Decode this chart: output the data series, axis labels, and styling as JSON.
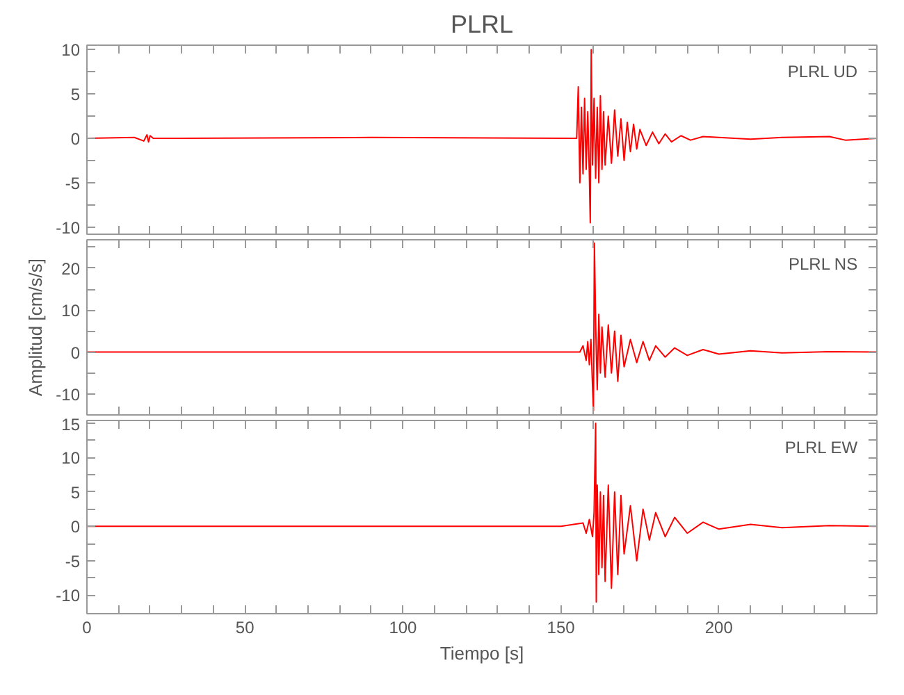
{
  "chart_data": [
    {
      "type": "line",
      "title": "PLRL",
      "annotations": [
        "PLRL   UD"
      ],
      "grid": false,
      "tick_labels": "y",
      "x": [
        0,
        15,
        18,
        19,
        19.5,
        20,
        21,
        25,
        90,
        155,
        155.5,
        156,
        156.5,
        157,
        157.5,
        158,
        158.5,
        159,
        159.3,
        159.6,
        160,
        160.5,
        161,
        161.5,
        162,
        162.5,
        163,
        163.5,
        164,
        165,
        166,
        167,
        168,
        169,
        170,
        171,
        172,
        173,
        174,
        175,
        177,
        179,
        181,
        183,
        185,
        188,
        191,
        195,
        200,
        210,
        220,
        235,
        240,
        250
      ],
      "series": [
        {
          "color": "#ff0000",
          "values": [
            0,
            0.1,
            -0.3,
            0.4,
            -0.4,
            0.3,
            0,
            0,
            0.1,
            0,
            5.8,
            -5,
            3.5,
            -4,
            4.5,
            -3.5,
            3,
            -4,
            -9.5,
            10,
            -3,
            4.5,
            -4.5,
            3.5,
            -5,
            4.8,
            -3.5,
            3,
            -3,
            2.5,
            -2.8,
            3.2,
            -2,
            2.2,
            -2.5,
            1.8,
            -1.5,
            1.6,
            -1.2,
            1,
            -0.8,
            0.7,
            -0.6,
            0.5,
            -0.4,
            0.3,
            -0.2,
            0.2,
            0.1,
            -0.1,
            0.1,
            0.2,
            -0.2,
            0
          ]
        }
      ],
      "xlim": [
        0,
        250
      ],
      "ylim": [
        -10.8,
        10.5
      ],
      "xticks": [
        0,
        {
          "value": 10,
          "label": null
        },
        {
          "value": 20,
          "label": null
        },
        {
          "value": 30,
          "label": null
        },
        {
          "value": 40,
          "label": null
        },
        50,
        {
          "value": 60,
          "label": null
        },
        {
          "value": 70,
          "label": null
        },
        {
          "value": 80,
          "label": null
        },
        {
          "value": 90,
          "label": null
        },
        100,
        {
          "value": 110,
          "label": null
        },
        {
          "value": 120,
          "label": null
        },
        {
          "value": 130,
          "label": null
        },
        {
          "value": 140,
          "label": null
        },
        150,
        {
          "value": 160,
          "label": null
        },
        {
          "value": 170,
          "label": null
        },
        {
          "value": 180,
          "label": null
        },
        {
          "value": 190,
          "label": null
        },
        200,
        {
          "value": 210,
          "label": null
        },
        {
          "value": 220,
          "label": null
        },
        {
          "value": 230,
          "label": null
        },
        {
          "value": 240,
          "label": null
        }
      ],
      "yticks": [
        -10,
        {
          "value": -7.5,
          "label": null
        },
        -5,
        {
          "value": -2.5,
          "label": null
        },
        0,
        {
          "value": 2.5,
          "label": null
        },
        5,
        {
          "value": 7.5,
          "label": null
        },
        10
      ]
    },
    {
      "type": "line",
      "ylabel": "Amplitud [cm/s/s]",
      "annotations": [
        "PLRL   NS"
      ],
      "grid": false,
      "tick_labels": "y",
      "x": [
        0,
        50,
        100,
        150,
        156,
        157,
        158,
        158.5,
        159,
        159.5,
        160,
        160.3,
        160.6,
        161,
        161.5,
        162,
        162.5,
        163,
        164,
        165,
        166,
        167,
        168,
        169,
        170,
        172,
        174,
        176,
        178,
        180,
        183,
        186,
        190,
        195,
        200,
        210,
        220,
        235,
        250
      ],
      "series": [
        {
          "color": "#ff0000",
          "values": [
            0,
            0,
            0,
            0,
            0,
            1.5,
            -2,
            2.5,
            -3,
            3,
            -8,
            -14,
            26,
            7,
            -9,
            9,
            -5,
            6,
            -6,
            6.5,
            -5,
            5,
            -7,
            4,
            -3.5,
            3,
            -2.5,
            2.5,
            -2,
            1.5,
            -1.2,
            1,
            -0.8,
            0.6,
            -0.5,
            0.3,
            -0.2,
            0.1,
            0
          ]
        }
      ],
      "xlim": [
        0,
        250
      ],
      "ylim": [
        -15,
        26.8
      ],
      "xticks": [
        0,
        {
          "value": 10,
          "label": null
        },
        {
          "value": 20,
          "label": null
        },
        {
          "value": 30,
          "label": null
        },
        {
          "value": 40,
          "label": null
        },
        50,
        {
          "value": 60,
          "label": null
        },
        {
          "value": 70,
          "label": null
        },
        {
          "value": 80,
          "label": null
        },
        {
          "value": 90,
          "label": null
        },
        100,
        {
          "value": 110,
          "label": null
        },
        {
          "value": 120,
          "label": null
        },
        {
          "value": 130,
          "label": null
        },
        {
          "value": 140,
          "label": null
        },
        150,
        {
          "value": 160,
          "label": null
        },
        {
          "value": 170,
          "label": null
        },
        {
          "value": 180,
          "label": null
        },
        {
          "value": 190,
          "label": null
        },
        200,
        {
          "value": 210,
          "label": null
        },
        {
          "value": 220,
          "label": null
        },
        {
          "value": 230,
          "label": null
        },
        {
          "value": 240,
          "label": null
        }
      ],
      "yticks": [
        -10,
        {
          "value": -5,
          "label": null
        },
        0,
        {
          "value": 5,
          "label": null
        },
        10,
        {
          "value": 15,
          "label": null
        },
        20,
        {
          "value": 25,
          "label": null
        }
      ]
    },
    {
      "type": "line",
      "xlabel": "Tiempo [s]",
      "annotations": [
        "PLRL   EW"
      ],
      "grid": false,
      "x": [
        0,
        50,
        100,
        150,
        157,
        158,
        159,
        160,
        160.5,
        161,
        161.2,
        161.5,
        162,
        162.5,
        163,
        163.5,
        164,
        165,
        166,
        167,
        168,
        169,
        170,
        172,
        174,
        176,
        178,
        180,
        183,
        186,
        190,
        195,
        200,
        210,
        220,
        235,
        250
      ],
      "series": [
        {
          "color": "#ff0000",
          "values": [
            0,
            0,
            0,
            0,
            0.5,
            -1,
            1,
            -1.5,
            2,
            15,
            -11,
            6,
            -7,
            5,
            -6,
            4.5,
            -8,
            6,
            -9,
            5,
            -7,
            4.5,
            -4,
            3,
            -5,
            2.5,
            -2,
            2,
            -1.5,
            1.3,
            -1,
            0.6,
            -0.4,
            0.3,
            -0.2,
            0.1,
            0
          ]
        }
      ],
      "xlim": [
        0,
        250
      ],
      "ylim": [
        -12.7,
        15.4
      ],
      "xticks": [
        0,
        {
          "value": 10,
          "label": null
        },
        {
          "value": 20,
          "label": null
        },
        {
          "value": 30,
          "label": null
        },
        {
          "value": 40,
          "label": null
        },
        50,
        {
          "value": 60,
          "label": null
        },
        {
          "value": 70,
          "label": null
        },
        {
          "value": 80,
          "label": null
        },
        {
          "value": 90,
          "label": null
        },
        100,
        {
          "value": 110,
          "label": null
        },
        {
          "value": 120,
          "label": null
        },
        {
          "value": 130,
          "label": null
        },
        {
          "value": 140,
          "label": null
        },
        150,
        {
          "value": 160,
          "label": null
        },
        {
          "value": 170,
          "label": null
        },
        {
          "value": 180,
          "label": null
        },
        {
          "value": 190,
          "label": null
        },
        200,
        {
          "value": 210,
          "label": null
        },
        {
          "value": 220,
          "label": null
        },
        {
          "value": 230,
          "label": null
        },
        {
          "value": 240,
          "label": null
        }
      ],
      "yticks": [
        -10,
        {
          "value": -7.5,
          "label": null
        },
        -5,
        {
          "value": -2.5,
          "label": null
        },
        0,
        {
          "value": 2.5,
          "label": null
        },
        5,
        {
          "value": 7.5,
          "label": null
        },
        10,
        {
          "value": 12.5,
          "label": null
        },
        15
      ]
    }
  ]
}
